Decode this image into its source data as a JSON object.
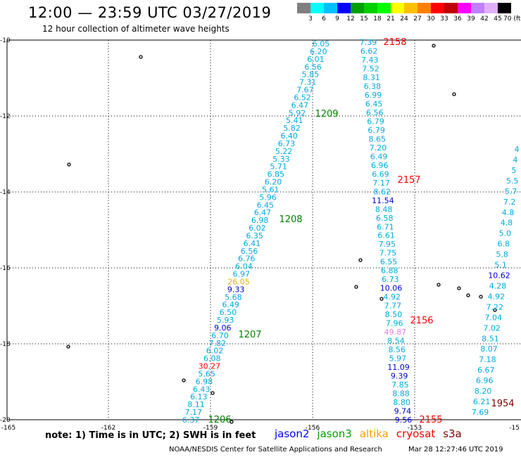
{
  "header": {
    "title": "12:00 — 23:59 UTC 03/27/2019",
    "subtitle": "12 hour collection of altimeter wave heights"
  },
  "colorbar": {
    "colors": [
      "#7f7f7f",
      "#00ffff",
      "#00c0ff",
      "#0000ff",
      "#00a000",
      "#00d000",
      "#00ff00",
      "#ffff00",
      "#ffc000",
      "#ff8000",
      "#ff0000",
      "#c00000",
      "#ff00ff",
      "#c080ff",
      "#e0b0ff",
      "#000000"
    ],
    "labels": [
      "3",
      "6",
      "9",
      "12",
      "15",
      "18",
      "21",
      "24",
      "27",
      "30",
      "33",
      "36",
      "39",
      "42",
      "45",
      "70 (ft)"
    ]
  },
  "axes": {
    "x_ticks": [
      "-165",
      "-162",
      "-159",
      "-156",
      "-153",
      "-15"
    ],
    "y_ticks": [
      "-10",
      "-12",
      "-14",
      "-16",
      "-18",
      "-20"
    ]
  },
  "chart_data": {
    "type": "map-track-labels",
    "track_A": {
      "color": "#00aadd",
      "values": [
        "6.05",
        "6.20",
        "6.01",
        "6.56",
        "5.85",
        "7.31",
        "7.67",
        "6.52",
        "6.47",
        "5.92",
        "5.41",
        "5.82",
        "6.40",
        "6.73",
        "5.22",
        "5.33",
        "5.71",
        "6.85",
        "6.20",
        "5.61",
        "5.96",
        "6.45",
        "6.47",
        "6.98",
        "6.02",
        "6.35",
        "6.41",
        "6.56",
        "6.76",
        "6.04",
        "6.97",
        "26.05",
        "9.33",
        "5.68",
        "6.49",
        "6.50",
        "5.93",
        "9.06",
        "6.70",
        "7.82",
        "6.02",
        "6.08",
        "30.27",
        "5.65",
        "6.98",
        "6.43",
        "6.13",
        "8.11",
        "7.17",
        "6.37"
      ],
      "value_colors": {
        "26.05": "#e8b000",
        "9.33": "#0000cc",
        "9.06": "#0000cc",
        "30.27": "#ff0000"
      }
    },
    "track_B": {
      "color": "#00aadd",
      "values": [
        "7.39",
        "6.62",
        "7.43",
        "7.52",
        "8.31",
        "6.38",
        "6.99",
        "6.45",
        "6.56",
        "6.79",
        "6.79",
        "8.65",
        "7.20",
        "6.49",
        "6.96",
        "6.69",
        "7.17",
        "8.62",
        "11.54",
        "8.48",
        "6.58",
        "6.71",
        "6.61",
        "7.95",
        "7.75",
        "6.55",
        "6.88",
        "6.73",
        "10.06",
        "4.92",
        "7.77",
        "8.50",
        "7.96",
        "49.87",
        "8.54",
        "8.56",
        "5.97",
        "11.09",
        "9.39",
        "7.85",
        "8.88",
        "8.80",
        "9.74",
        "9.56"
      ],
      "value_colors": {
        "11.54": "#0000cc",
        "10.06": "#0000cc",
        "49.87": "#e080e0",
        "11.09": "#0000cc",
        "9.39": "#0000cc",
        "9.74": "#0000cc",
        "9.56": "#0000cc"
      }
    },
    "track_C": {
      "color": "#00aadd",
      "values": [
        "4",
        "4",
        "5",
        "5.5",
        "5.7",
        "7.2",
        "4.8",
        "4.8",
        "5.0",
        "6.8",
        "5.8",
        "5.1",
        "10.62",
        "4.28",
        "4.92",
        "7.22",
        "7.04",
        "7.02",
        "8.51",
        "8.07",
        "7.18",
        "6.67",
        "6.96",
        "8.20",
        "6.21",
        "7.69"
      ],
      "value_colors": {
        "10.62": "#0000cc"
      }
    },
    "time_labels": [
      {
        "text": "2158",
        "color": "#ff0000"
      },
      {
        "text": "1209",
        "color": "#008000"
      },
      {
        "text": "2157",
        "color": "#ff0000"
      },
      {
        "text": "1208",
        "color": "#008000"
      },
      {
        "text": "2156",
        "color": "#ff0000"
      },
      {
        "text": "1207",
        "color": "#008000"
      },
      {
        "text": "1206",
        "color": "#008000"
      },
      {
        "text": "2155",
        "color": "#ff0000"
      },
      {
        "text": "1954",
        "color": "#800000"
      }
    ]
  },
  "footer": {
    "note": "note: 1) Time is in UTC; 2) SWH is in feet",
    "legend": [
      {
        "label": "jason2",
        "color": "#0000ff"
      },
      {
        "label": "jason3",
        "color": "#00a000"
      },
      {
        "label": "altika",
        "color": "#ffa000"
      },
      {
        "label": "cryosat",
        "color": "#ff0000"
      },
      {
        "label": "s3a",
        "color": "#800000"
      }
    ],
    "credit": "NOAA/NESDIS Center for Satellite Applications and Research",
    "timestamp": "Mar 28 12:27:46 UTC 2019"
  }
}
